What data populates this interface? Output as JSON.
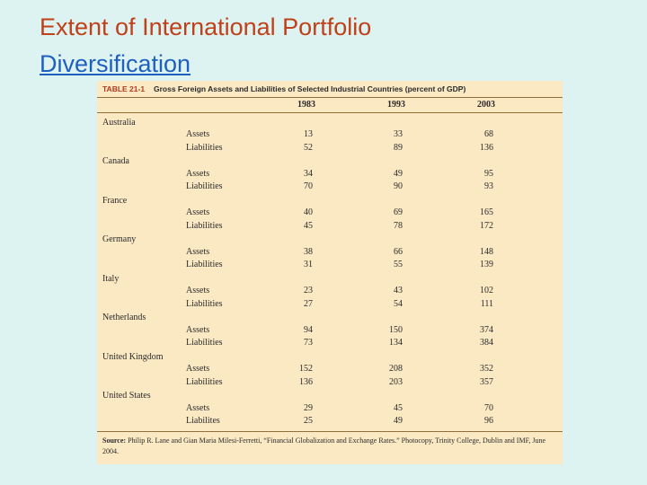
{
  "slide": {
    "title_line1": "Extent of International Portfolio",
    "title_line2": "Diversification"
  },
  "table": {
    "number": "TABLE 21-1",
    "title": "Gross Foreign Assets and Liabilities of Selected Industrial Countries (percent of GDP)",
    "years": [
      "1983",
      "1993",
      "2003"
    ],
    "rows": [
      {
        "country": "Australia",
        "assets_label": "Assets",
        "liabilities_label": "Liabilities",
        "assets": [
          "13",
          "33",
          "68"
        ],
        "liabilities": [
          "52",
          "89",
          "136"
        ]
      },
      {
        "country": "Canada",
        "assets_label": "Assets",
        "liabilities_label": "Liabilities",
        "assets": [
          "34",
          "49",
          "95"
        ],
        "liabilities": [
          "70",
          "90",
          "93"
        ]
      },
      {
        "country": "France",
        "assets_label": "Assets",
        "liabilities_label": "Liabilities",
        "assets": [
          "40",
          "69",
          "165"
        ],
        "liabilities": [
          "45",
          "78",
          "172"
        ]
      },
      {
        "country": "Germany",
        "assets_label": "Assets",
        "liabilities_label": "Liabilities",
        "assets": [
          "38",
          "66",
          "148"
        ],
        "liabilities": [
          "31",
          "55",
          "139"
        ]
      },
      {
        "country": "Italy",
        "assets_label": "Assets",
        "liabilities_label": "Liabilities",
        "assets": [
          "23",
          "43",
          "102"
        ],
        "liabilities": [
          "27",
          "54",
          "111"
        ]
      },
      {
        "country": "Netherlands",
        "assets_label": "Assets",
        "liabilities_label": "Liabilities",
        "assets": [
          "94",
          "150",
          "374"
        ],
        "liabilities": [
          "73",
          "134",
          "384"
        ]
      },
      {
        "country": "United Kingdom",
        "assets_label": "Assets",
        "liabilities_label": "Liabilities",
        "assets": [
          "152",
          "208",
          "352"
        ],
        "liabilities": [
          "136",
          "203",
          "357"
        ]
      },
      {
        "country": "United States",
        "assets_label": "Assets",
        "liabilities_label": "Liabilites",
        "assets": [
          "29",
          "45",
          "70"
        ],
        "liabilities": [
          "25",
          "49",
          "96"
        ]
      }
    ],
    "source_label": "Source:",
    "source_text": "Philip R. Lane and Gian Maria Milesi-Ferretti, “Financial Globalization and Exchange Rates.” Photocopy, Trinity College, Dublin and IMF, June 2004."
  }
}
